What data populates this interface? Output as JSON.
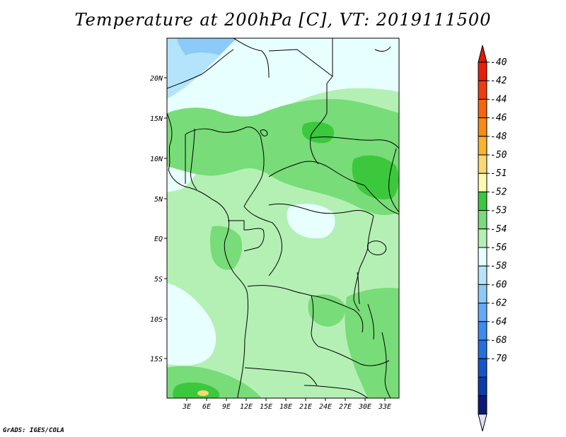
{
  "title": "Temperature at 200hPa [C], VT: 2019111500",
  "credit": "GrADS: IGES/COLA",
  "map": {
    "lon_range": [
      0,
      35
    ],
    "lat_range": [
      -20,
      25
    ],
    "lon_ticks": [
      {
        "value": 3,
        "label": "3E"
      },
      {
        "value": 6,
        "label": "6E"
      },
      {
        "value": 9,
        "label": "9E"
      },
      {
        "value": 12,
        "label": "12E"
      },
      {
        "value": 15,
        "label": "15E"
      },
      {
        "value": 18,
        "label": "18E"
      },
      {
        "value": 21,
        "label": "21E"
      },
      {
        "value": 24,
        "label": "24E"
      },
      {
        "value": 27,
        "label": "27E"
      },
      {
        "value": 30,
        "label": "30E"
      },
      {
        "value": 33,
        "label": "33E"
      }
    ],
    "lat_ticks": [
      {
        "value": 20,
        "label": "20N"
      },
      {
        "value": 15,
        "label": "15N"
      },
      {
        "value": 10,
        "label": "10N"
      },
      {
        "value": 5,
        "label": "5N"
      },
      {
        "value": 0,
        "label": "EQ"
      },
      {
        "value": -5,
        "label": "5S"
      },
      {
        "value": -10,
        "label": "10S"
      },
      {
        "value": -15,
        "label": "15S"
      }
    ]
  },
  "colorbar": {
    "levels": [
      {
        "label": "-40",
        "color": "#e8200a"
      },
      {
        "label": "-42",
        "color": "#f03c0c"
      },
      {
        "label": "-44",
        "color": "#f56410"
      },
      {
        "label": "-46",
        "color": "#f98a14"
      },
      {
        "label": "-48",
        "color": "#fbb22c"
      },
      {
        "label": "-50",
        "color": "#fdd870"
      },
      {
        "label": "-51",
        "color": "#fefab0"
      },
      {
        "label": "-52",
        "color": "#3cc83c"
      },
      {
        "label": "-53",
        "color": "#78dc78"
      },
      {
        "label": "-54",
        "color": "#b4f0b4"
      },
      {
        "label": "-56",
        "color": "#e8ffff"
      },
      {
        "label": "-58",
        "color": "#b4e4fc"
      },
      {
        "label": "-60",
        "color": "#8ccaf8"
      },
      {
        "label": "-62",
        "color": "#64aaf4"
      },
      {
        "label": "-64",
        "color": "#3c8cf0"
      },
      {
        "label": "-68",
        "color": "#2470e0"
      },
      {
        "label": "-70",
        "color": "#1454c8"
      }
    ],
    "top_color": "#d81c08",
    "extra_colors": [
      "#0c3ca8",
      "#0a1a78"
    ],
    "bottom_color": "#e0e0f8"
  }
}
